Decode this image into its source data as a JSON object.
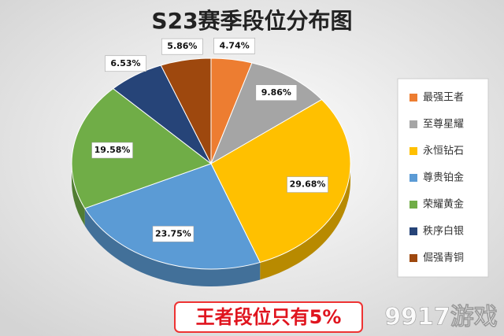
{
  "chart_data": {
    "type": "pie",
    "title": "S23赛季段位分布图",
    "categories": [
      "最强王者",
      "至尊星耀",
      "永恒钻石",
      "尊贵铂金",
      "荣耀黄金",
      "秩序白银",
      "倔强青铜"
    ],
    "values": [
      4.74,
      9.86,
      29.68,
      23.75,
      19.58,
      6.53,
      5.86
    ],
    "value_labels": [
      "4.74%",
      "9.86%",
      "29.68%",
      "23.75%",
      "19.58%",
      "6.53%",
      "5.86%"
    ],
    "colors": [
      "#ed7d31",
      "#a5a5a5",
      "#ffc000",
      "#5b9bd5",
      "#70ad47",
      "#264478",
      "#9e480e"
    ],
    "legend": "right",
    "annotation": "王者段位只有5%"
  },
  "watermark": "9917游戏"
}
